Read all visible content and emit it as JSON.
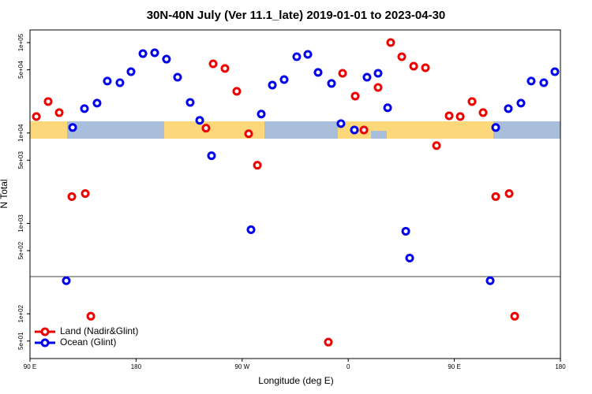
{
  "chart_data": {
    "type": "scatter",
    "title": "30N-40N July (Ver 11.1_late)   2019-01-01 to 2023-04-30",
    "x_label": "Longitude (deg E)",
    "y_label": "N Total",
    "log_y": true,
    "legend": "bottom left",
    "xlim": [
      90,
      540
    ],
    "ylim": [
      32,
      138000
    ],
    "xticks": [
      {
        "value": 90,
        "label": "90 E"
      },
      {
        "value": 180,
        "label": "180"
      },
      {
        "value": 270,
        "label": "90 W"
      },
      {
        "value": 360,
        "label": "0"
      },
      {
        "value": 450,
        "label": "90 E"
      },
      {
        "value": 540,
        "label": "180"
      }
    ],
    "yticks": [
      {
        "value": 50,
        "label": "5e+01"
      },
      {
        "value": 100,
        "label": "1e+02"
      },
      {
        "value": 500,
        "label": "5e+02"
      },
      {
        "value": 1000,
        "label": "1e+03"
      },
      {
        "value": 5000,
        "label": "5e+03"
      },
      {
        "value": 10000,
        "label": "1e+04"
      },
      {
        "value": 50000,
        "label": "5e+04"
      },
      {
        "value": 100000,
        "label": "1e+05"
      }
    ],
    "series": [
      {
        "name": "Land (Nadir&Glint)",
        "color": "#ee0000",
        "x": [
          95.4,
          105.4,
          114.8,
          125.5,
          136.9,
          141.6,
          239.3,
          245.4,
          255.4,
          265.4,
          275.5,
          282.9,
          343.1,
          355.2,
          365.9,
          373.3,
          385.3,
          396.0,
          405.4,
          415.5,
          425.5,
          434.9,
          445.6,
          455.0,
          465.0,
          474.4,
          485.1,
          496.5,
          501.2
        ],
        "values": [
          15200,
          22300,
          16800,
          1980,
          2140,
          94,
          11300,
          58200,
          51700,
          28900,
          9800,
          4400,
          48.6,
          45800,
          25600,
          10800,
          31900,
          100000,
          69700,
          54800,
          52700,
          7260,
          15500,
          15200,
          22300,
          16800,
          1980,
          2140,
          94
        ]
      },
      {
        "name": "Ocean (Glint)",
        "color": "#0000ee",
        "x": [
          120.8,
          126.2,
          136.2,
          146.9,
          155.6,
          166.3,
          175.7,
          185.8,
          195.8,
          205.8,
          215.2,
          225.9,
          234.0,
          244.0,
          277.5,
          286.2,
          295.6,
          305.6,
          316.3,
          325.7,
          334.4,
          345.8,
          353.8,
          365.2,
          375.9,
          385.3,
          393.4,
          408.8,
          412.1,
          480.4,
          485.1,
          495.8,
          506.5,
          515.2,
          525.9,
          535.3
        ],
        "values": [
          232,
          11500,
          18600,
          21400,
          37500,
          36000,
          47600,
          75500,
          77100,
          65600,
          41400,
          21800,
          13800,
          5600,
          851,
          16200,
          33900,
          39000,
          69700,
          74100,
          46800,
          35300,
          12700,
          10800,
          41400,
          45800,
          19000,
          819,
          414,
          232,
          11500,
          18600,
          21400,
          37500,
          36000,
          47600
        ]
      }
    ]
  }
}
